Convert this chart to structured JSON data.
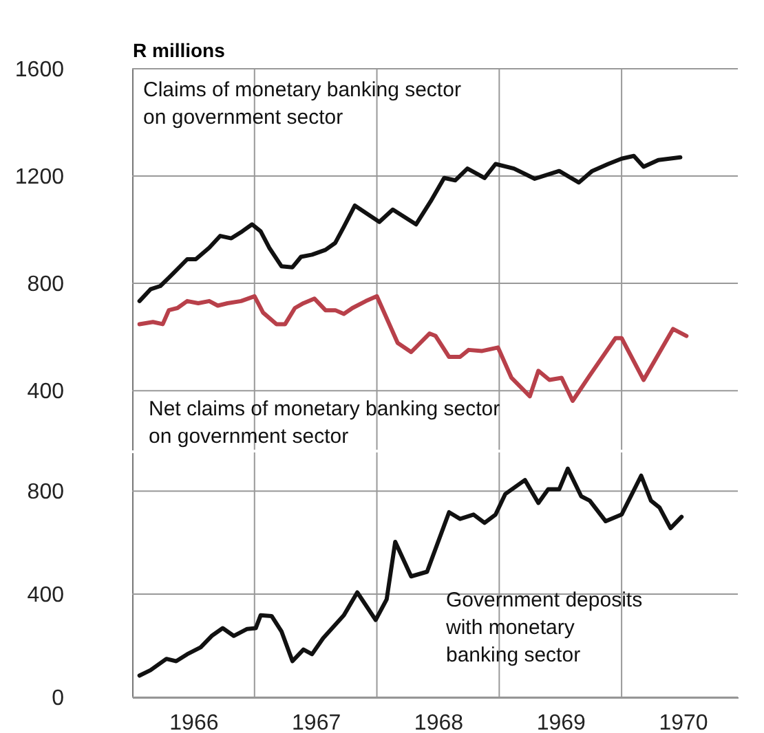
{
  "chart_data": [
    {
      "type": "line",
      "ylabel": "R millions",
      "xlim": [
        1966,
        1970.95
      ],
      "ylim": [
        180,
        1600
      ],
      "yticks": [
        400,
        800,
        1200,
        1600
      ],
      "xticks": [
        {
          "value": 1967,
          "label": null
        },
        {
          "value": 1968,
          "label": null
        },
        {
          "value": 1969,
          "label": null
        },
        {
          "value": 1970,
          "label": null
        }
      ],
      "grid": true,
      "tick_labels": "y",
      "series": [
        {
          "name": "Claims of monetary banking sector on government sector",
          "color": "#111111",
          "x": [
            1966.06,
            1966.15,
            1966.23,
            1966.3,
            1966.45,
            1966.52,
            1966.63,
            1966.72,
            1966.81,
            1966.9,
            1966.98,
            1967.05,
            1967.12,
            1967.22,
            1967.31,
            1967.38,
            1967.47,
            1967.58,
            1967.66,
            1967.73,
            1967.82,
            1968.02,
            1968.13,
            1968.32,
            1968.44,
            1968.55,
            1968.64,
            1968.74,
            1968.88,
            1968.97,
            1969.12,
            1969.29,
            1969.49,
            1969.65,
            1969.76,
            1969.89,
            1970.0,
            1970.1,
            1970.18,
            1970.3,
            1970.48
          ],
          "values": [
            734,
            778,
            790,
            821,
            890,
            890,
            933,
            977,
            968,
            994,
            1020,
            994,
            933,
            864,
            860,
            899,
            907,
            925,
            951,
            1011,
            1090,
            1029,
            1075,
            1020,
            1106,
            1193,
            1184,
            1228,
            1193,
            1245,
            1228,
            1190,
            1219,
            1176,
            1219,
            1245,
            1265,
            1275,
            1235,
            1260,
            1270
          ]
        },
        {
          "name": "Net claims of monetary banking sector on government sector",
          "color": "#b8404a",
          "x": [
            1966.06,
            1966.17,
            1966.25,
            1966.3,
            1966.37,
            1966.45,
            1966.54,
            1966.63,
            1966.7,
            1966.78,
            1966.89,
            1967.0,
            1967.07,
            1967.18,
            1967.25,
            1967.33,
            1967.4,
            1967.49,
            1967.58,
            1967.66,
            1967.73,
            1967.8,
            1967.91,
            1968.0,
            1968.17,
            1968.28,
            1968.43,
            1968.48,
            1968.59,
            1968.68,
            1968.75,
            1968.86,
            1968.99,
            1969.1,
            1969.25,
            1969.32,
            1969.41,
            1969.51,
            1969.6,
            1969.74,
            1969.95,
            1970.0,
            1970.18,
            1970.42,
            1970.53
          ],
          "values": [
            648,
            656,
            648,
            700,
            708,
            734,
            726,
            734,
            717,
            726,
            734,
            752,
            691,
            648,
            648,
            708,
            726,
            743,
            700,
            700,
            686,
            708,
            734,
            752,
            578,
            544,
            613,
            604,
            526,
            526,
            552,
            548,
            561,
            448,
            379,
            474,
            440,
            448,
            362,
            457,
            596,
            596,
            440,
            630,
            604
          ]
        }
      ]
    },
    {
      "type": "line",
      "xlim": [
        1966,
        1970.95
      ],
      "ylim": [
        0,
        950
      ],
      "yticks": [
        0,
        400,
        800
      ],
      "xticks": [
        {
          "value": 1966.5,
          "label": "1966"
        },
        {
          "value": 1967,
          "label": null
        },
        {
          "value": 1967.5,
          "label": "1967"
        },
        {
          "value": 1968,
          "label": null
        },
        {
          "value": 1968.5,
          "label": "1968"
        },
        {
          "value": 1969,
          "label": null
        },
        {
          "value": 1969.5,
          "label": "1969"
        },
        {
          "value": 1970,
          "label": null
        },
        {
          "value": 1970.5,
          "label": "1970"
        }
      ],
      "grid": true,
      "series": [
        {
          "name": "Government deposits with monetary banking sector",
          "color": "#111111",
          "x": [
            1966.06,
            1966.15,
            1966.28,
            1966.36,
            1966.45,
            1966.56,
            1966.65,
            1966.74,
            1966.83,
            1966.94,
            1967.01,
            1967.05,
            1967.14,
            1967.22,
            1967.31,
            1967.4,
            1967.47,
            1967.56,
            1967.73,
            1967.84,
            1967.99,
            1968.08,
            1968.15,
            1968.28,
            1968.41,
            1968.59,
            1968.68,
            1968.79,
            1968.88,
            1968.97,
            1969.05,
            1969.21,
            1969.32,
            1969.4,
            1969.49,
            1969.56,
            1969.67,
            1969.74,
            1969.87,
            1970.0,
            1970.16,
            1970.24,
            1970.31,
            1970.4,
            1970.49
          ],
          "values": [
            84,
            105,
            149,
            140,
            167,
            194,
            238,
            268,
            238,
            265,
            268,
            318,
            315,
            256,
            140,
            185,
            167,
            229,
            318,
            407,
            300,
            380,
            603,
            469,
            487,
            718,
            692,
            709,
            677,
            709,
            789,
            843,
            754,
            807,
            807,
            887,
            780,
            763,
            683,
            709,
            860,
            763,
            736,
            656,
            700
          ]
        }
      ]
    }
  ]
}
